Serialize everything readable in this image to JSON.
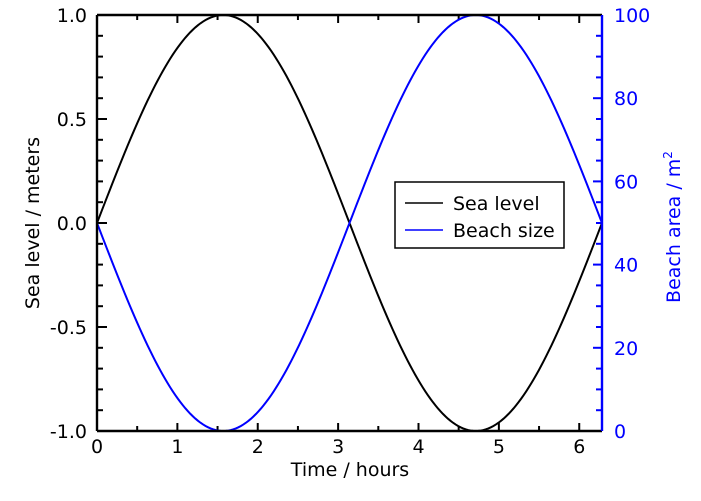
{
  "chart_data": {
    "type": "line",
    "title": "",
    "xlabel": "Time / hours",
    "ylabel": "Sea level / meters",
    "y2label": "Beach area / m",
    "y2label_sup": "2",
    "xlim": [
      0,
      6.2832
    ],
    "ylim": [
      -1.0,
      1.0
    ],
    "y2lim": [
      0,
      100
    ],
    "x_ticks": [
      0,
      1,
      2,
      3,
      4,
      5,
      6
    ],
    "x_tick_labels": [
      "0",
      "1",
      "2",
      "3",
      "4",
      "5",
      "6"
    ],
    "y_ticks": [
      -1.0,
      -0.5,
      0.0,
      0.5,
      1.0
    ],
    "y_tick_labels": [
      "-1.0",
      "-0.5",
      "0.0",
      "0.5",
      "1.0"
    ],
    "y2_ticks": [
      0,
      20,
      40,
      60,
      80,
      100
    ],
    "y2_tick_labels": [
      "0",
      "20",
      "40",
      "60",
      "80",
      "100"
    ],
    "grid": false,
    "legend_position": "center right",
    "series": [
      {
        "name": "Sea level",
        "axis": "left",
        "color": "#000000",
        "function": "sin(t)",
        "x": [
          0,
          0.5236,
          1.0472,
          1.5708,
          2.0944,
          2.618,
          3.1416,
          3.6652,
          4.1888,
          4.7124,
          5.236,
          5.7596,
          6.2832
        ],
        "values": [
          0.0,
          0.5,
          0.866,
          1.0,
          0.866,
          0.5,
          0.0,
          -0.5,
          -0.866,
          -1.0,
          -0.866,
          -0.5,
          0.0
        ]
      },
      {
        "name": "Beach size",
        "axis": "right",
        "color": "#0000ff",
        "function": "50 - 50*sin(t)",
        "x": [
          0,
          0.5236,
          1.0472,
          1.5708,
          2.0944,
          2.618,
          3.1416,
          3.6652,
          4.1888,
          4.7124,
          5.236,
          5.7596,
          6.2832
        ],
        "values": [
          50,
          25,
          6.7,
          0,
          6.7,
          25,
          50,
          75,
          93.3,
          100,
          93.3,
          75,
          50
        ]
      }
    ]
  },
  "colors": {
    "left_axis": "#000000",
    "right_axis": "#0000ff"
  }
}
